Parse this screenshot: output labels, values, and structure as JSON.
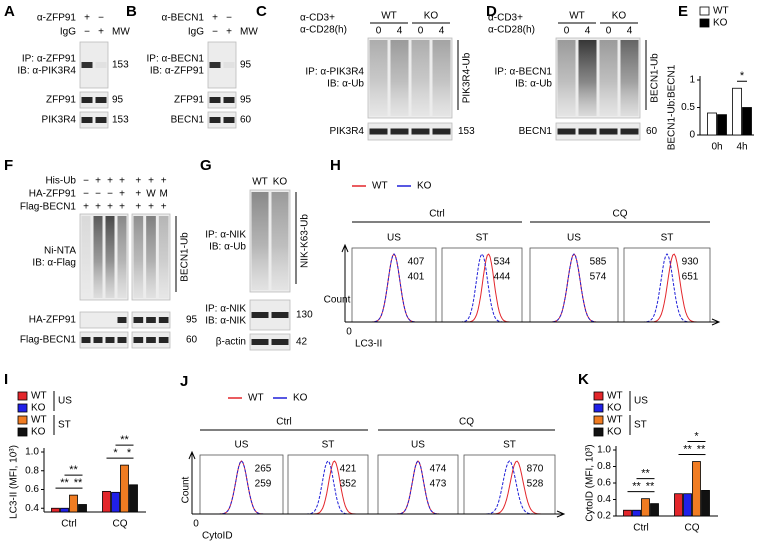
{
  "panels": {
    "A": {
      "letter": "A",
      "treat": [
        {
          "name": "α-ZFP91",
          "lanes": [
            "+",
            "−"
          ]
        },
        {
          "name": "IgG",
          "lanes": [
            "−",
            "+"
          ]
        }
      ],
      "mw_header": "MW",
      "blots": [
        {
          "labels": [
            "IP: α-ZFP91",
            "IB: α-PIK3R4"
          ],
          "mw": 153
        },
        {
          "labels": [
            "ZFP91"
          ],
          "mw": 95
        },
        {
          "labels": [
            "PIK3R4"
          ],
          "mw": 153
        }
      ]
    },
    "B": {
      "letter": "B",
      "treat": [
        {
          "name": "α-BECN1",
          "lanes": [
            "+",
            "−"
          ]
        },
        {
          "name": "IgG",
          "lanes": [
            "−",
            "+"
          ]
        }
      ],
      "mw_header": "MW",
      "blots": [
        {
          "labels": [
            "IP: α-BECN1",
            "IB: α-ZFP91"
          ],
          "mw": 95
        },
        {
          "labels": [
            "ZFP91"
          ],
          "mw": 95
        },
        {
          "labels": [
            "BECN1"
          ],
          "mw": 60
        }
      ]
    },
    "C": {
      "letter": "C",
      "stim": [
        "α-CD3+",
        "α-CD28(h)"
      ],
      "genotypes": [
        "WT",
        "KO"
      ],
      "times": [
        0,
        4,
        0,
        4
      ],
      "blots": [
        {
          "labels": [
            "IP: α-PIK3R4",
            "IB: α-Ub"
          ],
          "bracket": "PIK3R4-Ub"
        },
        {
          "labels": [
            "PIK3R4"
          ],
          "mw": 153
        }
      ]
    },
    "D": {
      "letter": "D",
      "stim": [
        "α-CD3+",
        "α-CD28(h)"
      ],
      "genotypes": [
        "WT",
        "KO"
      ],
      "times": [
        0,
        4,
        0,
        4
      ],
      "blots": [
        {
          "labels": [
            "IP: α-BECN1",
            "IB: α-Ub"
          ],
          "bracket": "BECN1-Ub"
        },
        {
          "labels": [
            "BECN1"
          ],
          "mw": 60
        }
      ]
    },
    "E": {
      "letter": "E",
      "type": "bar",
      "y_label": "BECN1-Ub:BECN1",
      "categories": [
        "0h",
        "4h"
      ],
      "series": [
        {
          "name": "WT",
          "color": "#ffffff",
          "values": [
            0.4,
            0.85
          ]
        },
        {
          "name": "KO",
          "color": "#000000",
          "values": [
            0.37,
            0.5
          ]
        }
      ],
      "ylim": [
        0,
        1
      ],
      "yticks": [
        0,
        0.5,
        1
      ],
      "significance": [
        "*"
      ]
    },
    "F": {
      "letter": "F",
      "treat": [
        {
          "name": "His-Ub",
          "lanes": [
            "−",
            "+",
            "+",
            "+",
            "+",
            "+",
            "+"
          ]
        },
        {
          "name": "HA-ZFP91",
          "lanes": [
            "−",
            "−",
            "−",
            "+",
            "+",
            "W",
            "M"
          ]
        },
        {
          "name": "Flag-BECN1",
          "lanes": [
            "+",
            "+",
            "+",
            "+",
            "+",
            "+",
            "+"
          ]
        }
      ],
      "blots": [
        {
          "labels": [
            "Ni-NTA",
            "IB: α-Flag"
          ],
          "bracket": "BECN1-Ub"
        },
        {
          "labels": [
            "HA-ZFP91"
          ],
          "mw": 95
        },
        {
          "labels": [
            "Flag-BECN1"
          ],
          "mw": 60
        }
      ]
    },
    "G": {
      "letter": "G",
      "genotypes": [
        "WT",
        "KO"
      ],
      "blots": [
        {
          "labels": [
            "IP: α-NIK",
            "IB: α-Ub"
          ],
          "bracket": "NIK-K63-Ub"
        },
        {
          "labels": [
            "IP: α-NIK",
            "IB: α-NIK"
          ],
          "mw": 130
        },
        {
          "labels": [
            "β-actin"
          ],
          "mw": 42
        }
      ]
    },
    "H": {
      "letter": "H",
      "legend": [
        {
          "name": "WT",
          "color": "#e3262b"
        },
        {
          "name": "KO",
          "color": "#2020d8"
        }
      ],
      "groups": [
        "Ctrl",
        "CQ"
      ],
      "conditions": [
        "US",
        "ST",
        "US",
        "ST"
      ],
      "wt": [
        407,
        534,
        585,
        930
      ],
      "ko": [
        401,
        444,
        574,
        651
      ],
      "y_axis": "Count",
      "x_origin": 0,
      "x_axis": "LC3-II"
    },
    "I": {
      "letter": "I",
      "type": "bar",
      "y_label": "LC3-II (MFI, 10³)",
      "categories": [
        "Ctrl",
        "CQ"
      ],
      "groups": [
        "US",
        "ST"
      ],
      "series": [
        {
          "name": "WT",
          "color": "#e3262b",
          "values": [
            0.4,
            0.58
          ]
        },
        {
          "name": "KO",
          "color": "#2020e8",
          "values": [
            0.4,
            0.57
          ]
        },
        {
          "name": "WT",
          "color": "#f07c22",
          "values": [
            0.54,
            0.86
          ]
        },
        {
          "name": "KO",
          "color": "#111111",
          "values": [
            0.44,
            0.65
          ]
        }
      ],
      "ylim": [
        0.36,
        1.0
      ],
      "yticks": [
        0.4,
        0.6,
        0.8,
        {
          "value": 1.0,
          "label": "1.0"
        }
      ],
      "significance": [
        "**",
        "**",
        "**",
        "*",
        "*",
        "**"
      ]
    },
    "J": {
      "letter": "J",
      "legend": [
        {
          "name": "WT",
          "color": "#e3262b"
        },
        {
          "name": "KO",
          "color": "#2020d8"
        }
      ],
      "groups": [
        "Ctrl",
        "CQ"
      ],
      "conditions": [
        "US",
        "ST",
        "US",
        "ST"
      ],
      "wt": [
        265,
        421,
        474,
        870
      ],
      "ko": [
        259,
        352,
        473,
        528
      ],
      "y_axis": "Count",
      "x_origin": 0,
      "x_axis": "CytoID"
    },
    "K": {
      "letter": "K",
      "type": "bar",
      "y_label": "CytoID (MFI, 10³)",
      "categories": [
        "Ctrl",
        "CQ"
      ],
      "groups": [
        "US",
        "ST"
      ],
      "series": [
        {
          "name": "WT",
          "color": "#e3262b",
          "values": [
            0.27,
            0.47
          ]
        },
        {
          "name": "KO",
          "color": "#2020e8",
          "values": [
            0.27,
            0.47
          ]
        },
        {
          "name": "WT",
          "color": "#f07c22",
          "values": [
            0.41,
            0.86
          ]
        },
        {
          "name": "KO",
          "color": "#111111",
          "values": [
            0.35,
            0.51
          ]
        }
      ],
      "ylim": [
        0.2,
        1.0
      ],
      "yticks": [
        0.2,
        0.4,
        0.6,
        0.8,
        {
          "value": 1.0,
          "label": "1.0"
        }
      ],
      "significance": [
        "**",
        "**",
        "**",
        "**",
        "**",
        "*"
      ]
    }
  }
}
